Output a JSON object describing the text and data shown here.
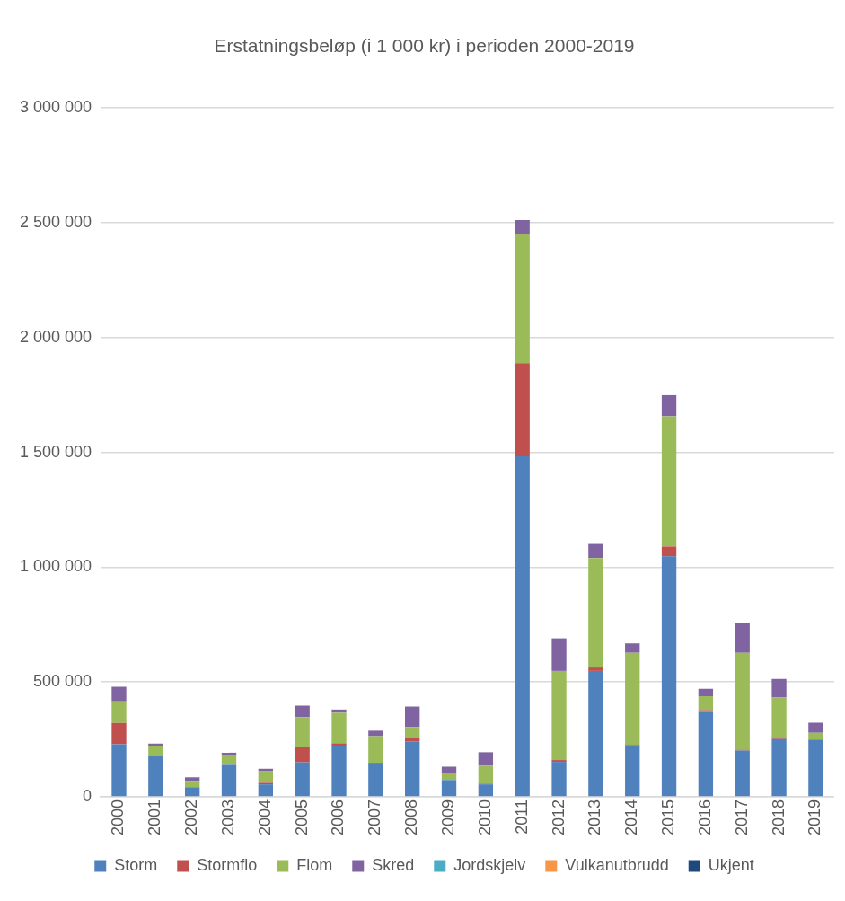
{
  "chart_data": {
    "type": "bar",
    "title": "Erstatningsbeløp (i 1 000 kr) i perioden 2000-2019",
    "categories": [
      "2000",
      "2001",
      "2002",
      "2003",
      "2004",
      "2005",
      "2006",
      "2007",
      "2008",
      "2009",
      "2010",
      "2011",
      "2012",
      "2013",
      "2014",
      "2015",
      "2016",
      "2017",
      "2018",
      "2019"
    ],
    "stacked": true,
    "series": [
      {
        "name": "Storm",
        "color": "#4f81bd",
        "values": [
          229000,
          178000,
          42000,
          139000,
          54000,
          150000,
          219000,
          141000,
          240000,
          73000,
          54000,
          1483000,
          152000,
          548000,
          224000,
          1047000,
          370000,
          201000,
          251000,
          249000
        ]
      },
      {
        "name": "Stormflo",
        "color": "#c0504d",
        "values": [
          93000,
          null,
          0,
          null,
          7000,
          65000,
          14000,
          7000,
          16000,
          0,
          3000,
          406000,
          8000,
          15000,
          3000,
          43000,
          7000,
          4000,
          6000,
          null
        ]
      },
      {
        "name": "Flom",
        "color": "#9bbb59",
        "values": [
          94000,
          45000,
          27000,
          41000,
          52000,
          132000,
          133000,
          116000,
          48000,
          30000,
          79000,
          561000,
          388000,
          477000,
          400000,
          567000,
          61000,
          422000,
          175000,
          30000
        ]
      },
      {
        "name": "Skred",
        "color": "#8064a2",
        "values": [
          63000,
          9000,
          16000,
          12000,
          9000,
          50000,
          14000,
          24000,
          89000,
          28000,
          58000,
          62000,
          142000,
          61000,
          41000,
          92000,
          32000,
          129000,
          81000,
          44000
        ]
      },
      {
        "name": "Jordskjelv",
        "color": "#4bacc6",
        "values": [
          0,
          0,
          0,
          0,
          0,
          0,
          0,
          0,
          0,
          0,
          0,
          0,
          0,
          0,
          0,
          0,
          0,
          0,
          0,
          0
        ]
      },
      {
        "name": "Vulkanutbrudd",
        "color": "#f79646",
        "values": [
          0,
          0,
          0,
          0,
          0,
          0,
          0,
          0,
          0,
          0,
          0,
          0,
          0,
          0,
          0,
          0,
          0,
          0,
          0,
          0
        ]
      },
      {
        "name": "Ukjent",
        "color": "#1f497d",
        "values": [
          0,
          0,
          0,
          0,
          0,
          0,
          0,
          0,
          0,
          0,
          0,
          0,
          0,
          0,
          0,
          0,
          0,
          0,
          0,
          0
        ]
      }
    ],
    "ylim": [
      0,
      3000000
    ],
    "yticks": [
      0,
      {
        "value": 500000,
        "label": "500 000"
      },
      {
        "value": 1000000,
        "label": "1 000 000"
      },
      {
        "value": 1500000,
        "label": "1 500 000"
      },
      {
        "value": 2000000,
        "label": "2 000 000"
      },
      {
        "value": 2500000,
        "label": "2 500 000"
      },
      {
        "value": 3000000,
        "label": "3 000 000"
      }
    ],
    "grid": "y",
    "legend": "bottom"
  }
}
